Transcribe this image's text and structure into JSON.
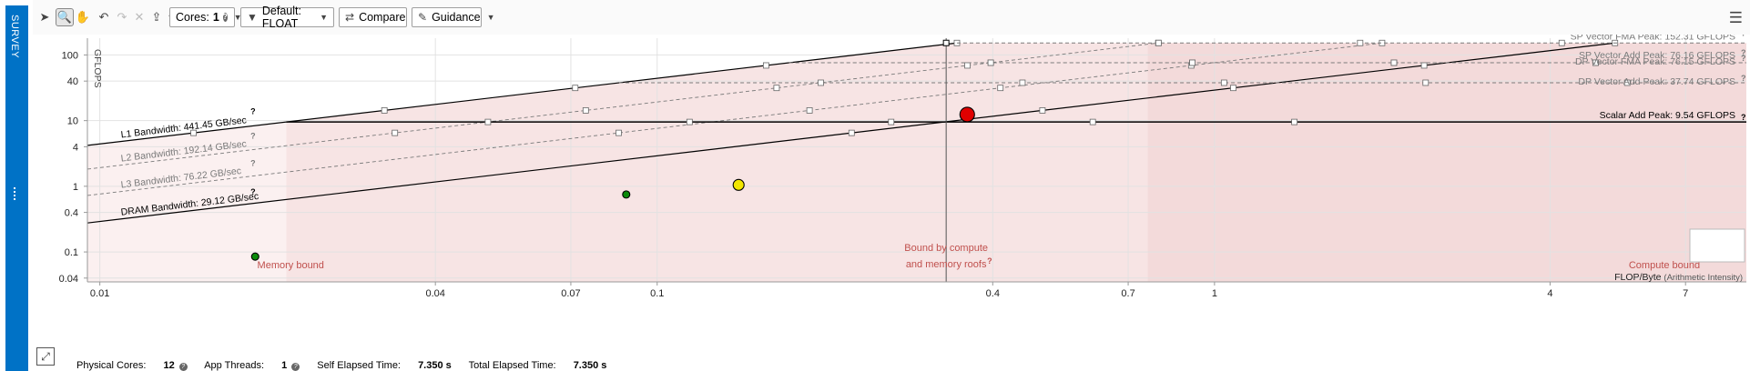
{
  "side_tab": {
    "label": "SURVEY"
  },
  "toolbar": {
    "cores_label": "Cores:",
    "cores_value": "1",
    "filter_label": "Default: FLOAT",
    "compare_label": "Compare",
    "guidance_label": "Guidance"
  },
  "status": {
    "physical_cores_label": "Physical Cores:",
    "physical_cores_value": "12",
    "app_threads_label": "App Threads:",
    "app_threads_value": "1",
    "self_elapsed_label": "Self Elapsed Time:",
    "self_elapsed_value": "7.350 s",
    "total_elapsed_label": "Total Elapsed Time:",
    "total_elapsed_value": "7.350 s"
  },
  "chart_data": {
    "type": "scatter",
    "title": "",
    "xlabel": "FLOP/Byte",
    "xlabel_suffix": "(Arithmetic Intensity)",
    "ylabel": "GFLOPS",
    "x_scale": "log",
    "y_scale": "log",
    "xlim": [
      0.0095,
      9.0
    ],
    "ylim": [
      0.035,
      180
    ],
    "x_ticks": [
      0.01,
      0.04,
      0.07,
      0.1,
      0.4,
      0.7,
      1,
      4,
      7
    ],
    "x_tick_labels": [
      "0.01",
      "0.04",
      "0.07",
      "0.1",
      "0.4",
      "0.7",
      "1",
      "4",
      "7"
    ],
    "y_ticks": [
      0.04,
      0.1,
      0.4,
      1,
      4,
      10,
      40,
      100
    ],
    "y_tick_labels": [
      "0.04",
      "0.1",
      "0.4",
      "1",
      "4",
      "10",
      "40",
      "100"
    ],
    "memory_roofs": [
      {
        "label": "L1 Bandwidth: 441.45 GB/sec",
        "gb_per_sec": 441.45,
        "style": "solid",
        "color": "#000000"
      },
      {
        "label": "L2 Bandwidth: 192.14 GB/sec",
        "gb_per_sec": 192.14,
        "style": "dashed",
        "color": "#7a7a7a"
      },
      {
        "label": "L3 Bandwidth: 76.22 GB/sec",
        "gb_per_sec": 76.22,
        "style": "dashed",
        "color": "#7a7a7a"
      },
      {
        "label": "DRAM Bandwidth: 29.12 GB/sec",
        "gb_per_sec": 29.12,
        "style": "solid",
        "color": "#000000"
      }
    ],
    "compute_roofs": [
      {
        "label": "SP Vector FMA Peak: 152.31 GFLOPS",
        "gflops": 152.31,
        "style": "dashed",
        "color": "#7a7a7a"
      },
      {
        "label": "SP Vector Add Peak: 76.16 GFLOPS",
        "gflops": 76.16,
        "style": "dashed",
        "color": "#7a7a7a"
      },
      {
        "label": "DP Vector FMA Peak: 76.15 GFLOPS",
        "gflops": 76.15,
        "style": "dashed",
        "color": "#7a7a7a"
      },
      {
        "label": "DP Vector Add Peak: 37.74 GFLOPS",
        "gflops": 37.74,
        "style": "dashed",
        "color": "#7a7a7a"
      },
      {
        "label": "Scalar Add Peak: 9.54 GFLOPS",
        "gflops": 9.54,
        "style": "solid",
        "color": "#000000"
      }
    ],
    "points": [
      {
        "x": 0.36,
        "y": 12.4,
        "color": "#e00000",
        "size": "large"
      },
      {
        "x": 0.14,
        "y": 1.05,
        "color": "#f2e600",
        "size": "medium"
      },
      {
        "x": 0.088,
        "y": 0.75,
        "color": "#0a8a0a",
        "size": "small"
      },
      {
        "x": 0.019,
        "y": 0.085,
        "color": "#0a8a0a",
        "size": "small"
      }
    ],
    "crosshair_x": 0.33,
    "region_labels": {
      "memory": "Memory bound",
      "both_line1": "Bound by compute",
      "both_line2": "and memory roofs",
      "compute": "Compute bound"
    },
    "help_mark": "?",
    "colors": {
      "region_fill": "#f7e4e4",
      "region_fill_light": "#fbf0f0",
      "region_text": "#c0504d",
      "grid": "#e2e2e2"
    }
  }
}
